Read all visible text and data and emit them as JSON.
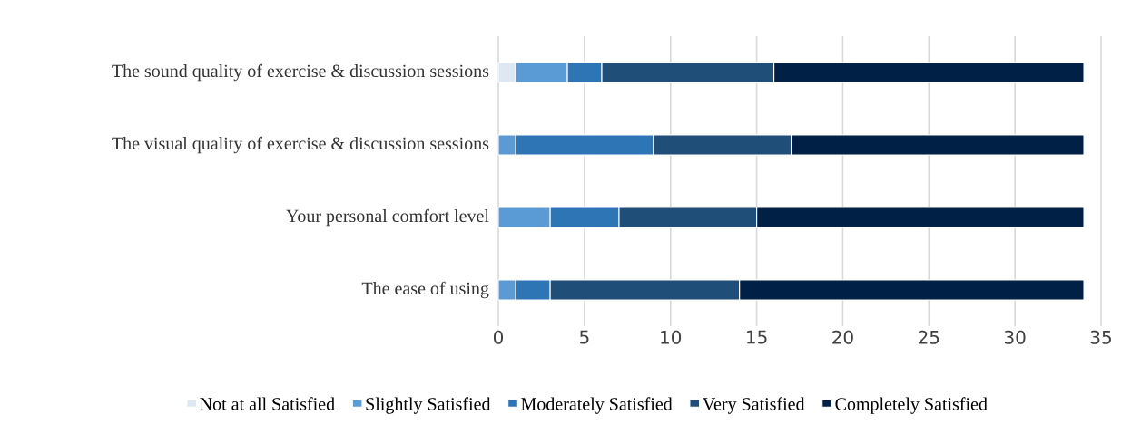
{
  "chart_data": {
    "type": "bar",
    "orientation": "horizontal",
    "stacked": true,
    "categories": [
      "The sound quality of exercise & discussion sessions",
      "The visual quality of exercise & discussion sessions",
      "Your personal comfort level",
      "The ease of using"
    ],
    "series": [
      {
        "name": "Not at all Satisfied",
        "color": "#dde8f4",
        "values": [
          1,
          0,
          0,
          0
        ]
      },
      {
        "name": "Slightly Satisfied",
        "color": "#5b9bd5",
        "values": [
          3,
          1,
          3,
          1
        ]
      },
      {
        "name": "Moderately Satisfied",
        "color": "#2e75b6",
        "values": [
          2,
          8,
          4,
          2
        ]
      },
      {
        "name": "Very Satisfied",
        "color": "#1f4e79",
        "values": [
          10,
          8,
          8,
          11
        ]
      },
      {
        "name": "Completely Satisfied",
        "color": "#002046",
        "values": [
          18,
          17,
          19,
          20
        ]
      }
    ],
    "xlim": [
      0,
      35
    ],
    "xticks": [
      0,
      5,
      10,
      15,
      20,
      25,
      30,
      35
    ],
    "grid": "x",
    "legend": "bottom"
  }
}
